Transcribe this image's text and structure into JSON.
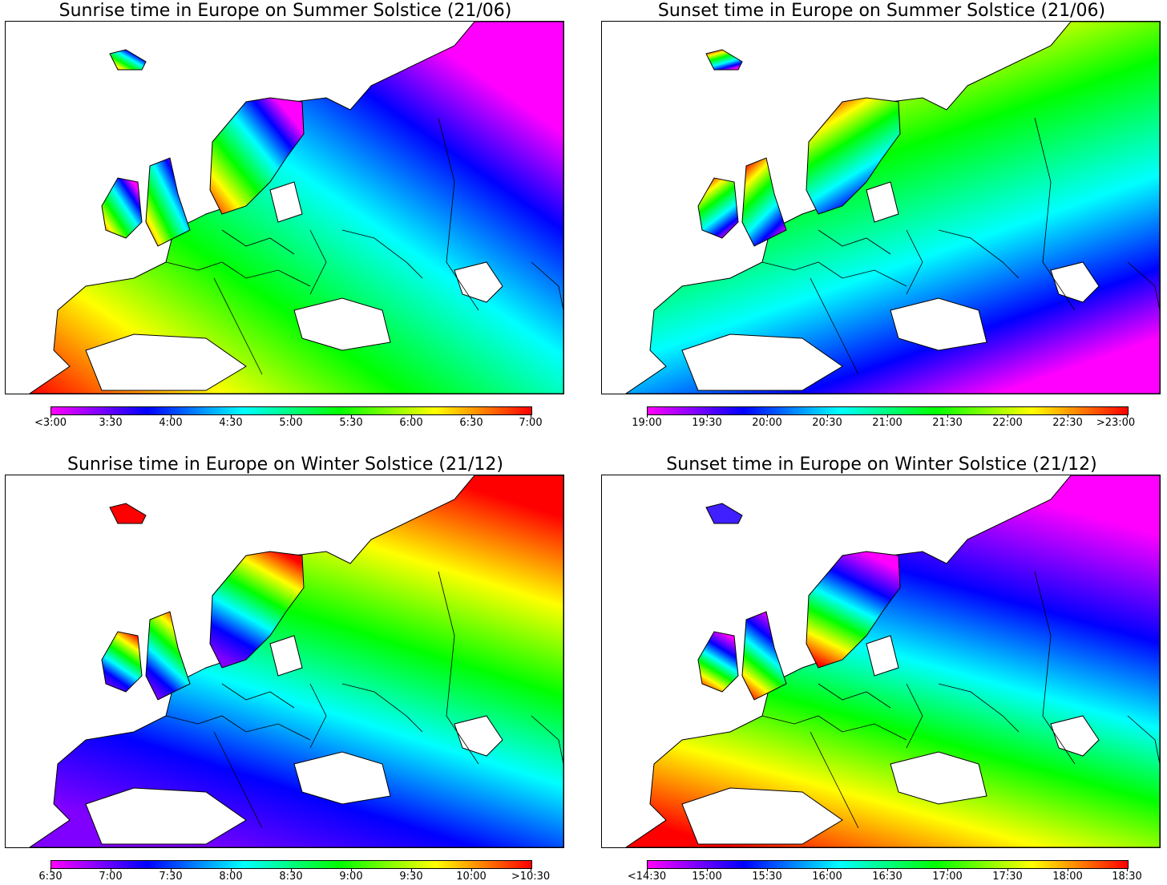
{
  "colors": {
    "ramp": [
      "#ff00ff",
      "#0000ff",
      "#00ffff",
      "#00ff00",
      "#ffff00",
      "#ff0000"
    ]
  },
  "panels": [
    {
      "id": "summer-sunrise",
      "title": "Sunrise time in Europe on Summer Solstice (21/06)",
      "ticks": [
        "<3:00",
        "3:30",
        "4:00",
        "4:30",
        "5:00",
        "5:30",
        "6:00",
        "6:30",
        "7:00"
      ],
      "gradient": {
        "dir": "ne",
        "east_hue": "magenta",
        "west_hue": "red"
      }
    },
    {
      "id": "summer-sunset",
      "title": "Sunset time in Europe on Summer Solstice (21/06)",
      "ticks": [
        "19:00",
        "19:30",
        "20:00",
        "20:30",
        "21:00",
        "21:30",
        "22:00",
        "22:30",
        ">23:00"
      ],
      "gradient": {
        "dir": "se",
        "north_hue": "red",
        "south_hue": "blue"
      }
    },
    {
      "id": "winter-sunrise",
      "title": "Sunrise time in Europe on Winter Solstice (21/12)",
      "ticks": [
        "6:30",
        "7:00",
        "7:30",
        "8:00",
        "8:30",
        "9:00",
        "9:30",
        "10:00",
        ">10:30"
      ],
      "gradient": {
        "dir": "n",
        "north_hue": "red",
        "south_hue": "blue"
      }
    },
    {
      "id": "winter-sunset",
      "title": "Sunset time in Europe on Winter Solstice (21/12)",
      "ticks": [
        "<14:30",
        "15:00",
        "15:30",
        "16:00",
        "16:30",
        "17:00",
        "17:30",
        "18:00",
        "18:30"
      ],
      "gradient": {
        "dir": "sw",
        "north_hue": "magenta",
        "south_hue": "red"
      }
    }
  ]
}
